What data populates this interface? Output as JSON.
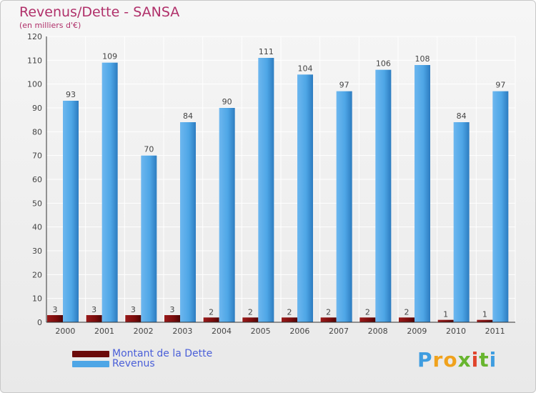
{
  "chart_data": {
    "type": "bar",
    "title": "Revenus/Dette - SANSA",
    "subtitle": "(en milliers d'€)",
    "categories": [
      "2000",
      "2001",
      "2002",
      "2003",
      "2004",
      "2005",
      "2006",
      "2007",
      "2008",
      "2009",
      "2010",
      "2011"
    ],
    "series": [
      {
        "name": "Montant de la Dette",
        "color": "#7a0c0c",
        "values": [
          3,
          3,
          3,
          3,
          2,
          2,
          2,
          2,
          2,
          2,
          1,
          1
        ]
      },
      {
        "name": "Revenus",
        "color": "#4ea6e6",
        "values": [
          93,
          109,
          70,
          84,
          90,
          111,
          104,
          97,
          106,
          108,
          84,
          97
        ]
      }
    ],
    "ylim": [
      0,
      120
    ],
    "yticks": [
      0,
      10,
      20,
      30,
      40,
      50,
      60,
      70,
      80,
      90,
      100,
      110,
      120
    ],
    "grid": true,
    "legend_position": "bottom-left"
  },
  "logo": {
    "text": "Proxiti",
    "letters": [
      "P",
      "r",
      "o",
      "x",
      "i",
      "t",
      "i"
    ]
  }
}
